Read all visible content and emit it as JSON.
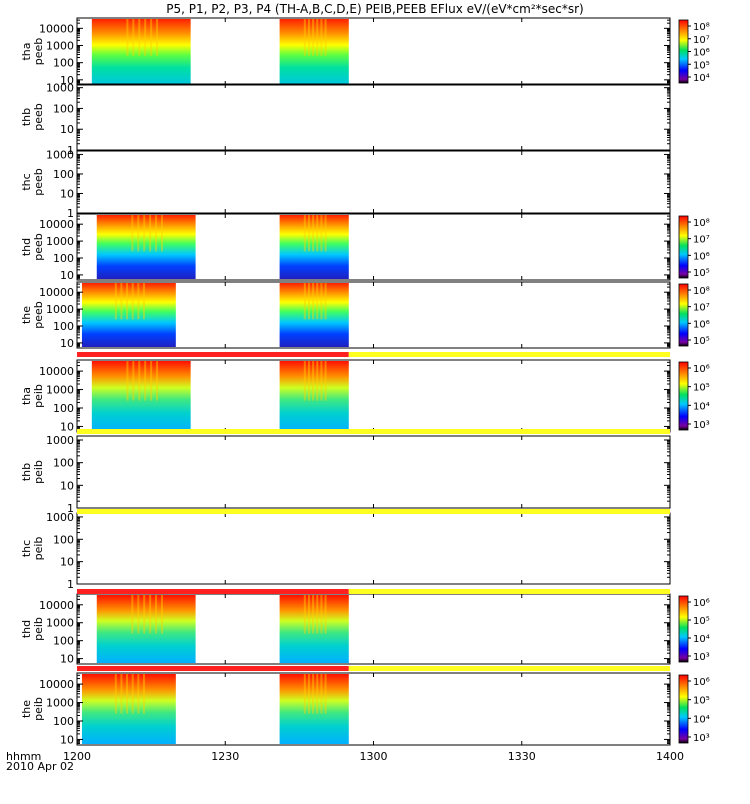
{
  "chart_data": {
    "type": "heatmap",
    "title": "P5, P1, P2, P3, P4 (TH-A,B,C,D,E) PEIB,PEEB EFlux eV/(eV*cm²*sec*sr)",
    "x_axis": {
      "label": "hhmm",
      "date": "2010 Apr 02",
      "range": [
        "12:00",
        "14:00"
      ],
      "ticks": [
        "1200",
        "1230",
        "1300",
        "1330",
        "1400"
      ]
    },
    "panels": [
      {
        "id": "tha-peeb",
        "probe": "tha",
        "product": "peeb",
        "yticks": [
          "10",
          "100",
          "1000",
          "10000"
        ],
        "ylim": [
          5,
          40000
        ],
        "data_intervals": [
          [
            "12:03",
            "12:23"
          ],
          [
            "12:41",
            "12:55"
          ]
        ],
        "colorbar": {
          "labels": [
            "10⁴",
            "10⁵",
            "10⁶",
            "10⁷",
            "10⁸"
          ]
        }
      },
      {
        "id": "thb-peeb",
        "probe": "thb",
        "product": "peeb",
        "yticks": [
          "1",
          "10",
          "100",
          "1000"
        ],
        "ylim": [
          1,
          1500
        ],
        "data_intervals": []
      },
      {
        "id": "thc-peeb",
        "probe": "thc",
        "product": "peeb",
        "yticks": [
          "1",
          "10",
          "100",
          "1000"
        ],
        "ylim": [
          1,
          1500
        ],
        "data_intervals": []
      },
      {
        "id": "thd-peeb",
        "probe": "thd",
        "product": "peeb",
        "yticks": [
          "10",
          "100",
          "1000",
          "10000"
        ],
        "ylim": [
          5,
          40000
        ],
        "data_intervals": [
          [
            "12:04",
            "12:24"
          ],
          [
            "12:41",
            "12:55"
          ]
        ],
        "colorbar": {
          "labels": [
            "10⁵",
            "10⁶",
            "10⁷",
            "10⁸"
          ]
        }
      },
      {
        "id": "the-peeb",
        "probe": "the",
        "product": "peeb",
        "yticks": [
          "10",
          "100",
          "1000",
          "10000"
        ],
        "ylim": [
          5,
          40000
        ],
        "data_intervals": [
          [
            "12:01",
            "12:20"
          ],
          [
            "12:41",
            "12:55"
          ]
        ],
        "colorbar": {
          "labels": [
            "10⁵",
            "10⁶",
            "10⁷",
            "10⁸"
          ]
        }
      },
      {
        "id": "tha-peib",
        "probe": "tha",
        "product": "peib",
        "yticks": [
          "10",
          "100",
          "1000",
          "10000"
        ],
        "ylim": [
          5,
          40000
        ],
        "data_intervals": [
          [
            "12:03",
            "12:23"
          ],
          [
            "12:41",
            "12:55"
          ]
        ],
        "colorbar": {
          "labels": [
            "10³",
            "10⁴",
            "10⁵",
            "10⁶"
          ]
        }
      },
      {
        "id": "thb-peib",
        "probe": "thb",
        "product": "peib",
        "yticks": [
          "1",
          "10",
          "100",
          "1000"
        ],
        "ylim": [
          1,
          1500
        ],
        "data_intervals": []
      },
      {
        "id": "thc-peib",
        "probe": "thc",
        "product": "peib",
        "yticks": [
          "1",
          "10",
          "100",
          "1000"
        ],
        "ylim": [
          1,
          1500
        ],
        "data_intervals": []
      },
      {
        "id": "thd-peib",
        "probe": "thd",
        "product": "peib",
        "yticks": [
          "10",
          "100",
          "1000",
          "10000"
        ],
        "ylim": [
          5,
          40000
        ],
        "data_intervals": [
          [
            "12:04",
            "12:24"
          ],
          [
            "12:41",
            "12:55"
          ]
        ],
        "colorbar": {
          "labels": [
            "10³",
            "10⁴",
            "10⁵",
            "10⁶"
          ]
        }
      },
      {
        "id": "the-peib",
        "probe": "the",
        "product": "peib",
        "yticks": [
          "10",
          "100",
          "1000",
          "10000"
        ],
        "ylim": [
          5,
          40000
        ],
        "data_intervals": [
          [
            "12:01",
            "12:20"
          ],
          [
            "12:41",
            "12:55"
          ]
        ],
        "colorbar": {
          "labels": [
            "10³",
            "10⁴",
            "10⁵",
            "10⁶"
          ]
        }
      }
    ],
    "mode_bars": [
      {
        "above": "tha-peib",
        "segments": [
          {
            "from": "12:00",
            "to": "12:55",
            "color": "#ff2020"
          },
          {
            "from": "12:55",
            "to": "14:00",
            "color": "#ffff20"
          }
        ]
      },
      {
        "above": "thb-peib",
        "segments": [
          {
            "from": "12:00",
            "to": "14:00",
            "color": "#ffff20"
          }
        ]
      },
      {
        "above": "thc-peib",
        "segments": [
          {
            "from": "12:00",
            "to": "14:00",
            "color": "#ffff20"
          }
        ]
      },
      {
        "above": "thd-peib",
        "segments": [
          {
            "from": "12:00",
            "to": "12:55",
            "color": "#ff2020"
          },
          {
            "from": "12:55",
            "to": "14:00",
            "color": "#ffff20"
          }
        ]
      },
      {
        "above": "the-peib",
        "segments": [
          {
            "from": "12:00",
            "to": "12:55",
            "color": "#ff2020"
          },
          {
            "from": "12:55",
            "to": "14:00",
            "color": "#ffff20"
          }
        ]
      }
    ],
    "colormap": "rainbow",
    "grid": false
  }
}
